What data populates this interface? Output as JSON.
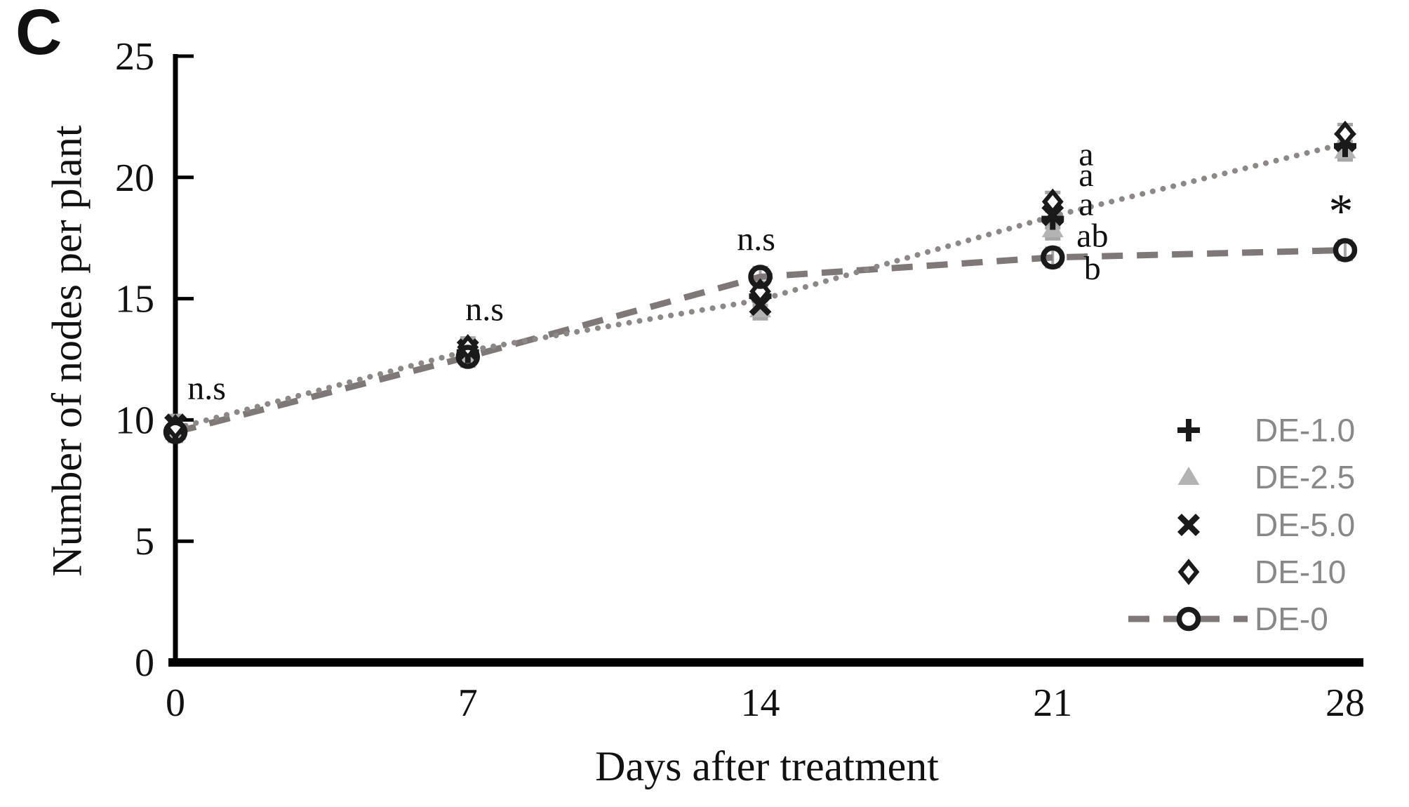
{
  "panel_label": "C",
  "chart_data": {
    "type": "line",
    "title": "",
    "xlabel": "Days after treatment",
    "ylabel": "Number of nodes per plant",
    "xlim": [
      0,
      28
    ],
    "ylim": [
      0,
      25
    ],
    "xticks": [
      0,
      7,
      14,
      21,
      28
    ],
    "yticks": [
      0,
      5,
      10,
      15,
      20,
      25
    ],
    "grid": false,
    "x": [
      0,
      7,
      14,
      21,
      28
    ],
    "series": [
      {
        "name": "DE-1.0",
        "marker": "plus",
        "line": "none",
        "values": [
          9.6,
          12.8,
          15.1,
          18.3,
          21.3
        ]
      },
      {
        "name": "DE-2.5",
        "marker": "triangle",
        "line": "none",
        "values": [
          9.5,
          12.7,
          14.55,
          17.85,
          21.1
        ]
      },
      {
        "name": "DE-5.0",
        "marker": "x",
        "line": "none",
        "values": [
          9.8,
          12.9,
          14.75,
          18.45,
          21.5
        ]
      },
      {
        "name": "DE-10",
        "marker": "diamond",
        "line": "none",
        "values": [
          9.7,
          13.0,
          15.3,
          19.0,
          21.8
        ]
      },
      {
        "name": "DE-0",
        "marker": "circle",
        "line": "dashed",
        "values": [
          9.5,
          12.6,
          15.9,
          16.7,
          17.0
        ]
      }
    ],
    "dotted_trend": {
      "description": "shared dotted connector through DE treatment clusters",
      "values": [
        9.65,
        12.85,
        14.95,
        18.4,
        21.4
      ]
    },
    "error_bar_half_units": 0.38,
    "annotations": [
      {
        "text": "n.s",
        "x": 0.75,
        "y": 11.35,
        "size": 48
      },
      {
        "text": "n.s",
        "x": 7.4,
        "y": 14.6,
        "size": 48
      },
      {
        "text": "n.s",
        "x": 13.9,
        "y": 17.5,
        "size": 48
      },
      {
        "text": "a",
        "x": 21.8,
        "y": 21.0,
        "size": 48
      },
      {
        "text": "a",
        "x": 21.8,
        "y": 20.15,
        "size": 48
      },
      {
        "text": "a",
        "x": 21.8,
        "y": 18.95,
        "size": 48
      },
      {
        "text": "ab",
        "x": 21.95,
        "y": 17.65,
        "size": 48
      },
      {
        "text": "b",
        "x": 21.95,
        "y": 16.3,
        "size": 48
      },
      {
        "text": "*",
        "x": 27.9,
        "y": 19.2,
        "size": 70
      }
    ],
    "legend": {
      "position": "inside-right",
      "entries": [
        {
          "label": "DE-1.0",
          "marker": "plus",
          "line": "none"
        },
        {
          "label": "DE-2.5",
          "marker": "triangle",
          "line": "none"
        },
        {
          "label": "DE-5.0",
          "marker": "x",
          "line": "none"
        },
        {
          "label": "DE-10",
          "marker": "diamond",
          "line": "none"
        },
        {
          "label": "DE-0",
          "marker": "circle",
          "line": "dashed"
        }
      ]
    },
    "colors": {
      "marker": "#1a1a1a",
      "dotted_line": "#8c8888",
      "dashed_line": "#7e7878",
      "triangle_fill": "#b3b3b3",
      "legend_text": "#888888",
      "error_bar": "#a6a6a6",
      "axis": "#000000",
      "text": "#111111"
    }
  }
}
